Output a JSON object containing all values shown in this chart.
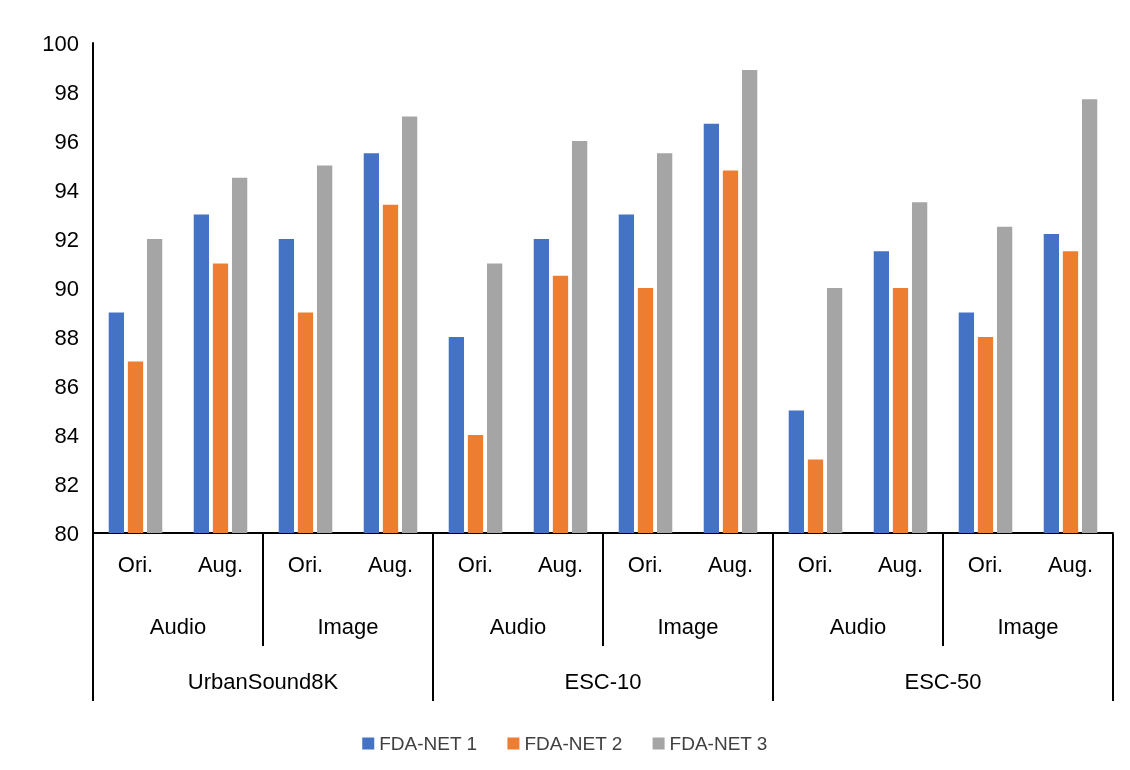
{
  "chart_data": {
    "type": "bar",
    "categories": [
      "Ori.",
      "Aug.",
      "Ori.",
      "Aug.",
      "Ori.",
      "Aug.",
      "Ori.",
      "Aug.",
      "Ori.",
      "Aug.",
      "Ori.",
      "Aug."
    ],
    "annotations": [
      "Audio",
      "Image",
      "Audio",
      "Image",
      "Audio",
      "Image",
      "UrbanSound8K",
      "ESC-10",
      "ESC-50"
    ],
    "series": [
      {
        "name": "FDA-NET 1",
        "color": "#4472c4",
        "values": [
          89,
          93,
          92,
          95.5,
          88,
          92,
          93,
          96.7,
          85,
          91.5,
          89,
          92.2
        ]
      },
      {
        "name": "FDA-NET 2",
        "color": "#ed7d31",
        "values": [
          87,
          91,
          89,
          93.4,
          84,
          90.5,
          90,
          94.8,
          83,
          90,
          88,
          91.5
        ]
      },
      {
        "name": "FDA-NET 3",
        "color": "#a5a5a5",
        "values": [
          92,
          94.5,
          95,
          97,
          91,
          96,
          95.5,
          98.9,
          90,
          93.5,
          92.5,
          97.7
        ]
      }
    ],
    "ylim": [
      80,
      100
    ],
    "yticks": [
      80,
      82,
      84,
      86,
      88,
      90,
      92,
      94,
      96,
      98,
      100
    ],
    "grid": false,
    "legend": "bottom"
  }
}
